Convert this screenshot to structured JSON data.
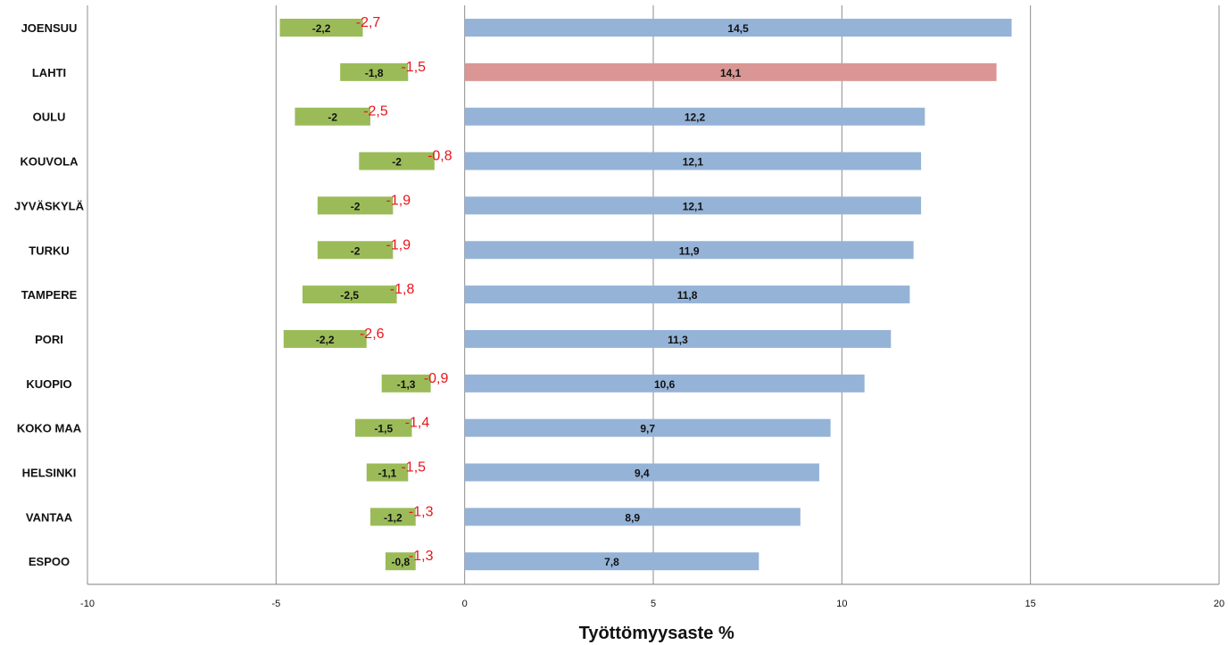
{
  "chart_data": {
    "type": "bar",
    "orientation": "horizontal",
    "xlabel": "Työttömyysaste %",
    "xlim": [
      -10,
      20
    ],
    "xticks": [
      -10,
      -5,
      0,
      5,
      10,
      15,
      20
    ],
    "xtick_labels": [
      "-10",
      "-5",
      "0",
      "5",
      "10",
      "15",
      "20"
    ],
    "grid": "vertical",
    "categories": [
      "JOENSUU",
      "LAHTI",
      "OULU",
      "KOUVOLA",
      "JYVÄSKYLÄ",
      "TURKU",
      "TAMPERE",
      "PORI",
      "KUOPIO",
      "KOKO MAA",
      "HELSINKI",
      "VANTAA",
      "ESPOO"
    ],
    "series": [
      {
        "values": [
          14.5,
          14.1,
          12.2,
          12.1,
          12.1,
          11.9,
          11.8,
          11.3,
          10.6,
          9.7,
          9.4,
          8.9,
          7.8
        ],
        "labels": [
          "14,5",
          "14,1",
          "12,2",
          "12,1",
          "12,1",
          "11,9",
          "11,8",
          "11,3",
          "10,6",
          "9,7",
          "9,4",
          "8,9",
          "7,8"
        ],
        "color": "#95b3d7",
        "highlight_color": "#d99694",
        "highlight_category": "LAHTI"
      },
      {
        "values": [
          -2.2,
          -1.8,
          -2.0,
          -2.0,
          -2.0,
          -2.0,
          -2.5,
          -2.2,
          -1.3,
          -1.5,
          -1.1,
          -1.2,
          -0.8
        ],
        "labels": [
          "-2,2",
          "-1,8",
          "-2",
          "-2",
          "-2",
          "-2",
          "-2,5",
          "-2,2",
          "-1,3",
          "-1,5",
          "-1,1",
          "-1,2",
          "-0,8"
        ],
        "offset": [
          -2.7,
          -1.5,
          -2.5,
          -0.8,
          -1.9,
          -1.9,
          -1.8,
          -2.6,
          -0.9,
          -1.4,
          -1.5,
          -1.3,
          -1.3
        ],
        "color": "#9bbb59"
      }
    ],
    "annotations": {
      "values": [
        -2.7,
        -1.5,
        -2.5,
        -0.8,
        -1.9,
        -1.9,
        -1.8,
        -2.6,
        -0.9,
        -1.4,
        -1.5,
        -1.3,
        -1.3
      ],
      "labels": [
        "-2,7",
        "-1,5",
        "-2,5",
        "-0,8",
        "-1,9",
        "-1,9",
        "-1,8",
        "-2,6",
        "-0,9",
        "-1,4",
        "-1,5",
        "-1,3",
        "-1,3"
      ],
      "color": "#e8141b"
    }
  }
}
